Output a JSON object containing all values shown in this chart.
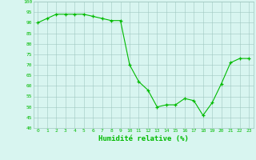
{
  "x": [
    0,
    1,
    2,
    3,
    4,
    5,
    6,
    7,
    8,
    9,
    10,
    11,
    12,
    13,
    14,
    15,
    16,
    17,
    18,
    19,
    20,
    21,
    22,
    23
  ],
  "y": [
    90,
    92,
    94,
    94,
    94,
    94,
    93,
    92,
    91,
    91,
    70,
    62,
    58,
    50,
    51,
    51,
    54,
    53,
    46,
    52,
    61,
    71,
    73,
    73
  ],
  "line_color": "#00bb00",
  "marker_color": "#00bb00",
  "bg_color": "#d8f5f0",
  "grid_color": "#a0c8c0",
  "xlabel": "Humidité relative (%)",
  "xlabel_color": "#00bb00",
  "ylim": [
    40,
    100
  ],
  "yticks": [
    40,
    45,
    50,
    55,
    60,
    65,
    70,
    75,
    80,
    85,
    90,
    95,
    100
  ],
  "xticks": [
    0,
    1,
    2,
    3,
    4,
    5,
    6,
    7,
    8,
    9,
    10,
    11,
    12,
    13,
    14,
    15,
    16,
    17,
    18,
    19,
    20,
    21,
    22,
    23
  ],
  "xtick_labels": [
    "0",
    "1",
    "2",
    "3",
    "4",
    "5",
    "6",
    "7",
    "8",
    "9",
    "10",
    "11",
    "12",
    "13",
    "14",
    "15",
    "16",
    "17",
    "18",
    "19",
    "20",
    "21",
    "22",
    "23"
  ]
}
